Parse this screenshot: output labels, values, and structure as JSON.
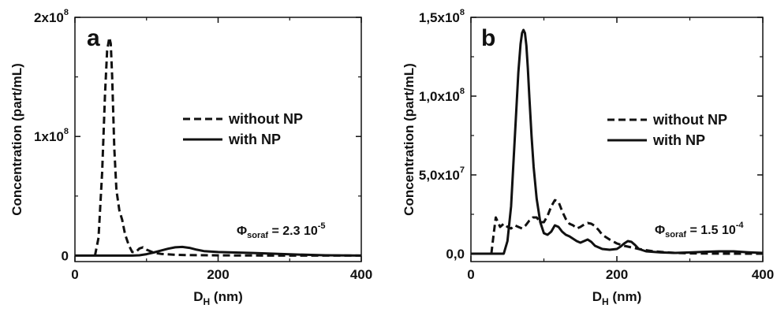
{
  "chart_data": [
    {
      "type": "line",
      "panel_label": "a",
      "xlabel_main": "D",
      "xlabel_sub": "H",
      "xlabel_unit": " (nm)",
      "ylabel": "Concentration (part/mL)",
      "xlim": [
        0,
        400
      ],
      "ylim": [
        -5000000,
        200000000
      ],
      "x_ticks": [
        {
          "value": 0,
          "label": "0"
        },
        {
          "value": 200,
          "label": "200"
        },
        {
          "value": 400,
          "label": "400"
        }
      ],
      "y_ticks": [
        {
          "value": 0,
          "label": "0",
          "exp": ""
        },
        {
          "value": 100000000,
          "label": "1x10",
          "exp": "8"
        },
        {
          "value": 200000000,
          "label": "2x10",
          "exp": "8"
        }
      ],
      "annotation": {
        "phi": "Φ",
        "sub": "soraf",
        "text": " = 2.3 10",
        "exp": "-5"
      },
      "legend_position": "center-right",
      "series": [
        {
          "name": "without NP",
          "style": "dashed",
          "x": [
            28,
            33,
            38,
            42,
            45,
            48,
            50,
            52,
            55,
            58,
            62,
            66,
            70,
            75,
            80,
            85,
            90,
            95,
            100,
            110,
            120,
            140,
            160,
            200,
            250,
            300,
            350,
            400
          ],
          "y": [
            0,
            15000000,
            70000000,
            135000000,
            172000000,
            183000000,
            178000000,
            150000000,
            90000000,
            55000000,
            38000000,
            30000000,
            18000000,
            9000000,
            3000000,
            3000000,
            6000000,
            7000000,
            5000000,
            2500000,
            1500000,
            700000,
            400000,
            200000,
            100000,
            0,
            0,
            0
          ]
        },
        {
          "name": "with NP",
          "style": "solid",
          "x": [
            0,
            50,
            80,
            90,
            100,
            110,
            120,
            130,
            140,
            150,
            160,
            170,
            180,
            200,
            250,
            300,
            350,
            400
          ],
          "y": [
            0,
            0,
            0,
            300000,
            1200000,
            2600000,
            4200000,
            5800000,
            7000000,
            7300000,
            6500000,
            5000000,
            3800000,
            3000000,
            2200000,
            1100000,
            300000,
            0
          ]
        }
      ]
    },
    {
      "type": "line",
      "panel_label": "b",
      "xlabel_main": "D",
      "xlabel_sub": "H",
      "xlabel_unit": " (nm)",
      "ylabel": "Concentration (part/mL)",
      "xlim": [
        0,
        400
      ],
      "ylim": [
        -5000000,
        150000000
      ],
      "x_ticks": [
        {
          "value": 0,
          "label": "0"
        },
        {
          "value": 200,
          "label": "200"
        },
        {
          "value": 400,
          "label": "400"
        }
      ],
      "y_ticks": [
        {
          "value": 0,
          "label": "0,0",
          "exp": ""
        },
        {
          "value": 50000000,
          "label": "5,0x10",
          "exp": "7"
        },
        {
          "value": 100000000,
          "label": "1,0x10",
          "exp": "8"
        },
        {
          "value": 150000000,
          "label": "1,5x10",
          "exp": "8"
        }
      ],
      "annotation": {
        "phi": "Φ",
        "sub": "soraf",
        "text": " = 1.5 10",
        "exp": "-4"
      },
      "legend_position": "center-right",
      "series": [
        {
          "name": "without NP",
          "style": "dashed",
          "x": [
            28,
            31,
            34,
            37,
            40,
            45,
            50,
            55,
            60,
            65,
            70,
            75,
            80,
            85,
            90,
            95,
            100,
            105,
            110,
            115,
            120,
            125,
            130,
            135,
            140,
            145,
            150,
            155,
            160,
            165,
            170,
            175,
            180,
            190,
            200,
            210,
            220,
            230,
            250,
            280,
            300,
            350,
            400
          ],
          "y": [
            0,
            12000000,
            23000000,
            20000000,
            17000000,
            19000000,
            17000000,
            16000000,
            18000000,
            17000000,
            16000000,
            18000000,
            21000000,
            23000000,
            23000000,
            20000000,
            20000000,
            24000000,
            30000000,
            34000000,
            33000000,
            27000000,
            22000000,
            19000000,
            18000000,
            16000000,
            17000000,
            18500000,
            19500000,
            19000000,
            17500000,
            15000000,
            12000000,
            9000000,
            6500000,
            5000000,
            4000000,
            3000000,
            1500000,
            500000,
            200000,
            0,
            0
          ]
        },
        {
          "name": "with NP",
          "style": "solid",
          "x": [
            0,
            45,
            50,
            55,
            58,
            62,
            65,
            68,
            70,
            72,
            74,
            76,
            78,
            80,
            83,
            86,
            90,
            95,
            100,
            105,
            110,
            115,
            120,
            125,
            130,
            135,
            140,
            145,
            150,
            155,
            160,
            165,
            170,
            180,
            190,
            200,
            205,
            210,
            215,
            220,
            225,
            230,
            240,
            260,
            280,
            300,
            320,
            340,
            360,
            380,
            400
          ],
          "y": [
            0,
            0,
            8000000,
            30000000,
            55000000,
            90000000,
            115000000,
            133000000,
            140000000,
            142000000,
            140000000,
            132000000,
            118000000,
            100000000,
            75000000,
            55000000,
            35000000,
            20000000,
            13000000,
            12000000,
            14000000,
            18000000,
            17000000,
            14000000,
            12000000,
            11000000,
            9500000,
            8000000,
            7000000,
            8000000,
            9000000,
            7500000,
            5000000,
            3000000,
            2500000,
            3000000,
            4500000,
            6500000,
            8000000,
            7500000,
            5500000,
            3000000,
            1500000,
            800000,
            500000,
            800000,
            1200000,
            1500000,
            1500000,
            900000,
            500000
          ]
        }
      ]
    }
  ]
}
